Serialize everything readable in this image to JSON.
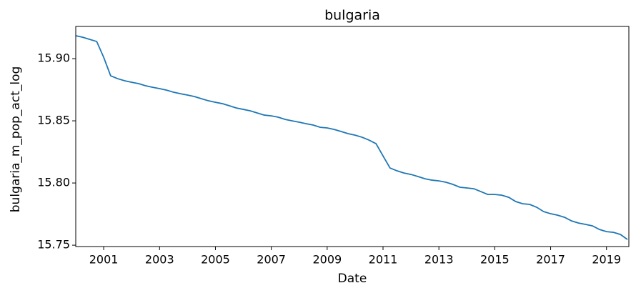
{
  "chart_data": {
    "type": "line",
    "title": "bulgaria",
    "x_label": "Date",
    "y_label": "bulgaria_m_pop_act_log",
    "x": [
      2000.0,
      2000.25,
      2000.5,
      2000.75,
      2001.0,
      2001.25,
      2001.5,
      2001.75,
      2002.0,
      2002.25,
      2002.5,
      2002.75,
      2003.0,
      2003.25,
      2003.5,
      2003.75,
      2004.0,
      2004.25,
      2004.5,
      2004.75,
      2005.0,
      2005.25,
      2005.5,
      2005.75,
      2006.0,
      2006.25,
      2006.5,
      2006.75,
      2007.0,
      2007.25,
      2007.5,
      2007.75,
      2008.0,
      2008.25,
      2008.5,
      2008.75,
      2009.0,
      2009.25,
      2009.5,
      2009.75,
      2010.0,
      2010.25,
      2010.5,
      2010.75,
      2011.0,
      2011.25,
      2011.5,
      2011.75,
      2012.0,
      2012.25,
      2012.5,
      2012.75,
      2013.0,
      2013.25,
      2013.5,
      2013.75,
      2014.0,
      2014.25,
      2014.5,
      2014.75,
      2015.0,
      2015.25,
      2015.5,
      2015.75,
      2016.0,
      2016.25,
      2016.5,
      2016.75,
      2017.0,
      2017.25,
      2017.5,
      2017.75,
      2018.0,
      2018.25,
      2018.5,
      2018.75,
      2019.0,
      2019.25,
      2019.5,
      2019.75
    ],
    "series": [
      {
        "name": "bulgaria_m_pop_act_log",
        "color": "#1f77b4",
        "values": [
          15.9184,
          15.9172,
          15.9155,
          15.9138,
          15.9011,
          15.8862,
          15.8839,
          15.8822,
          15.881,
          15.8799,
          15.8782,
          15.877,
          15.8759,
          15.8747,
          15.873,
          15.8718,
          15.8707,
          15.8695,
          15.8678,
          15.8661,
          15.8649,
          15.8638,
          15.8621,
          15.8603,
          15.8592,
          15.858,
          15.8563,
          15.8546,
          15.854,
          15.8529,
          15.8511,
          15.85,
          15.8489,
          15.8477,
          15.8466,
          15.8448,
          15.8443,
          15.8431,
          15.8414,
          15.8397,
          15.8385,
          15.8368,
          15.8345,
          15.8316,
          15.8218,
          15.8121,
          15.8098,
          15.808,
          15.8069,
          15.8052,
          15.8034,
          15.8023,
          15.8017,
          15.8006,
          15.7989,
          15.7966,
          15.796,
          15.7954,
          15.7931,
          15.7908,
          15.7908,
          15.7902,
          15.7885,
          15.7851,
          15.7833,
          15.7828,
          15.7805,
          15.777,
          15.7753,
          15.7741,
          15.7724,
          15.7695,
          15.7678,
          15.7667,
          15.7655,
          15.7626,
          15.7609,
          15.7603,
          15.7586,
          15.7546
        ]
      }
    ],
    "xlim": [
      2000.0,
      2019.8
    ],
    "xticks": [
      2001,
      2003,
      2005,
      2007,
      2009,
      2011,
      2013,
      2015,
      2017,
      2019
    ],
    "ylim": [
      15.7489,
      15.9259
    ],
    "yticks": [
      {
        "value": 15.75,
        "label": "15.75"
      },
      {
        "value": 15.8,
        "label": "15.80"
      },
      {
        "value": 15.85,
        "label": "15.85"
      },
      {
        "value": 15.9,
        "label": "15.90"
      }
    ]
  }
}
